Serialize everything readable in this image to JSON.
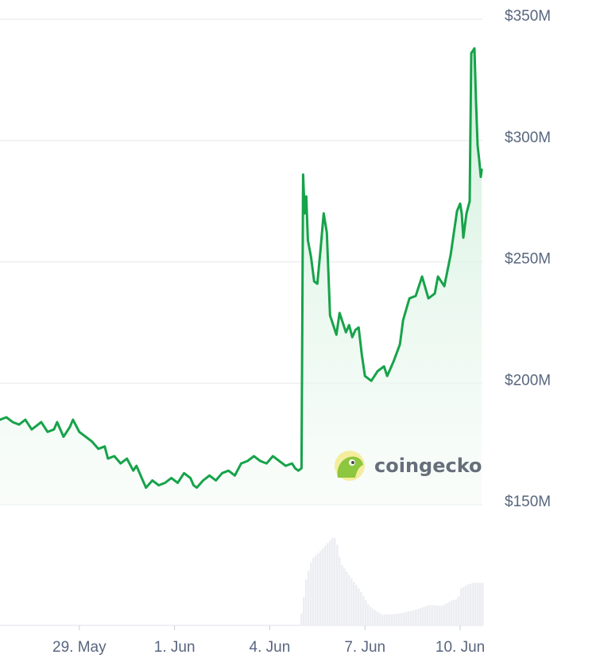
{
  "watermark": {
    "text": "coingecko",
    "icon": "gecko-logo-icon"
  },
  "colors": {
    "line": "#16a34a",
    "area_top": "#cdeed9",
    "area_bottom": "#f4fbf6",
    "grid": "#e6e8ec",
    "volume": "#eceef2",
    "axis_text": "#58667e"
  },
  "chart_data": {
    "type": "line",
    "title": "",
    "xlabel": "",
    "ylabel": "",
    "x_tick_labels": [
      "29. May",
      "1. Jun",
      "4. Jun",
      "7. Jun",
      "10. Jun"
    ],
    "y_tick_labels": [
      "$350M",
      "$300M",
      "$250M",
      "$200M",
      "$150M"
    ],
    "y_ticks": [
      350,
      300,
      250,
      200,
      150
    ],
    "y_unit": "USD millions",
    "ylim": [
      150,
      352
    ],
    "x_unit": "days",
    "x_ticks": [
      29,
      32,
      35,
      38,
      41
    ],
    "xlim": [
      26.5,
      41.7
    ],
    "grid": true,
    "legend": "none",
    "series": [
      {
        "points": [
          [
            26.5,
            185
          ],
          [
            26.7,
            186
          ],
          [
            26.9,
            184
          ],
          [
            27.1,
            183
          ],
          [
            27.3,
            185
          ],
          [
            27.5,
            181
          ],
          [
            27.7,
            183
          ],
          [
            27.8,
            184
          ],
          [
            28.0,
            180
          ],
          [
            28.2,
            181
          ],
          [
            28.3,
            184
          ],
          [
            28.5,
            178
          ],
          [
            28.7,
            182
          ],
          [
            28.8,
            185
          ],
          [
            29.0,
            180
          ],
          [
            29.2,
            178
          ],
          [
            29.4,
            176
          ],
          [
            29.6,
            173
          ],
          [
            29.8,
            174
          ],
          [
            29.9,
            169
          ],
          [
            30.1,
            170
          ],
          [
            30.3,
            167
          ],
          [
            30.5,
            169
          ],
          [
            30.7,
            164
          ],
          [
            30.8,
            166
          ],
          [
            31.0,
            160
          ],
          [
            31.1,
            157
          ],
          [
            31.3,
            160
          ],
          [
            31.5,
            158
          ],
          [
            31.7,
            159
          ],
          [
            31.9,
            161
          ],
          [
            32.1,
            159
          ],
          [
            32.3,
            163
          ],
          [
            32.5,
            161
          ],
          [
            32.6,
            158
          ],
          [
            32.7,
            157
          ],
          [
            32.9,
            160
          ],
          [
            33.1,
            162
          ],
          [
            33.3,
            160
          ],
          [
            33.5,
            163
          ],
          [
            33.7,
            164
          ],
          [
            33.9,
            162
          ],
          [
            34.1,
            167
          ],
          [
            34.3,
            168
          ],
          [
            34.5,
            170
          ],
          [
            34.7,
            168
          ],
          [
            34.9,
            167
          ],
          [
            35.1,
            170
          ],
          [
            35.3,
            168
          ],
          [
            35.5,
            166
          ],
          [
            35.7,
            167
          ],
          [
            35.8,
            165
          ],
          [
            35.9,
            164
          ],
          [
            36.0,
            165
          ],
          [
            36.05,
            286
          ],
          [
            36.1,
            270
          ],
          [
            36.15,
            277
          ],
          [
            36.2,
            259
          ],
          [
            36.3,
            252
          ],
          [
            36.4,
            242
          ],
          [
            36.5,
            241
          ],
          [
            36.6,
            255
          ],
          [
            36.7,
            270
          ],
          [
            36.8,
            262
          ],
          [
            36.9,
            228
          ],
          [
            37.0,
            224
          ],
          [
            37.1,
            220
          ],
          [
            37.2,
            229
          ],
          [
            37.3,
            225
          ],
          [
            37.4,
            221
          ],
          [
            37.5,
            224
          ],
          [
            37.6,
            219
          ],
          [
            37.7,
            222
          ],
          [
            37.8,
            223
          ],
          [
            37.9,
            212
          ],
          [
            38.0,
            203
          ],
          [
            38.2,
            201
          ],
          [
            38.4,
            205
          ],
          [
            38.6,
            207
          ],
          [
            38.7,
            203
          ],
          [
            38.9,
            209
          ],
          [
            39.1,
            216
          ],
          [
            39.2,
            226
          ],
          [
            39.4,
            235
          ],
          [
            39.6,
            236
          ],
          [
            39.8,
            244
          ],
          [
            40.0,
            235
          ],
          [
            40.2,
            237
          ],
          [
            40.3,
            244
          ],
          [
            40.5,
            240
          ],
          [
            40.7,
            253
          ],
          [
            40.8,
            262
          ],
          [
            40.9,
            271
          ],
          [
            41.0,
            274
          ],
          [
            41.05,
            270
          ],
          [
            41.1,
            260
          ],
          [
            41.2,
            270
          ],
          [
            41.3,
            275
          ],
          [
            41.35,
            336
          ],
          [
            41.45,
            338
          ],
          [
            41.5,
            316
          ],
          [
            41.55,
            298
          ],
          [
            41.6,
            292
          ],
          [
            41.65,
            285
          ],
          [
            41.68,
            288
          ]
        ]
      }
    ],
    "volume_series": {
      "note": "relative height 0-1",
      "points": [
        [
          26.5,
          0.01
        ],
        [
          35.9,
          0.01
        ],
        [
          36.0,
          0.2
        ],
        [
          36.1,
          0.5
        ],
        [
          36.3,
          0.75
        ],
        [
          36.6,
          0.85
        ],
        [
          36.9,
          0.97
        ],
        [
          37.0,
          1.0
        ],
        [
          37.1,
          0.9
        ],
        [
          37.2,
          0.7
        ],
        [
          37.5,
          0.55
        ],
        [
          37.8,
          0.4
        ],
        [
          38.1,
          0.22
        ],
        [
          38.5,
          0.12
        ],
        [
          39.0,
          0.13
        ],
        [
          39.5,
          0.17
        ],
        [
          40.0,
          0.23
        ],
        [
          40.4,
          0.22
        ],
        [
          40.7,
          0.28
        ],
        [
          40.9,
          0.3
        ],
        [
          41.0,
          0.42
        ],
        [
          41.2,
          0.46
        ],
        [
          41.4,
          0.48
        ],
        [
          41.68,
          0.48
        ]
      ]
    }
  }
}
